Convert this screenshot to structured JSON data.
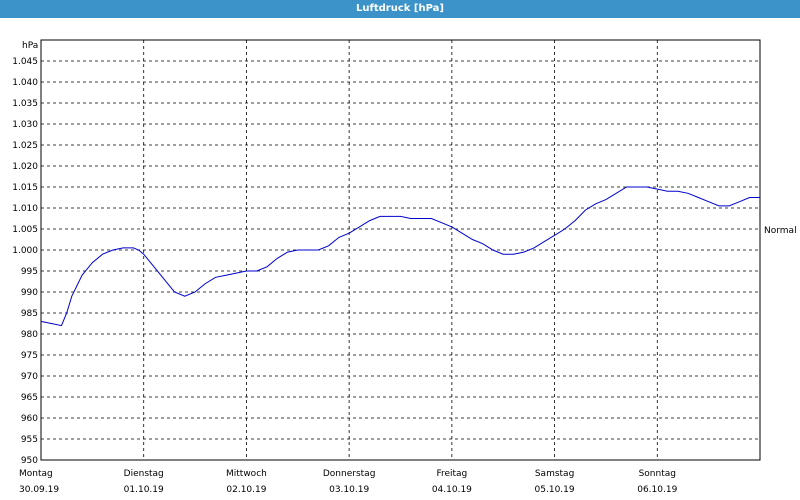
{
  "window": {
    "title": "Luftdruck [hPa]"
  },
  "chart_data": {
    "type": "line",
    "title": "Luftdruck [hPa]",
    "ylabel": "hPa",
    "ylim": [
      950,
      1050
    ],
    "yticks": [
      950,
      955,
      960,
      965,
      970,
      975,
      980,
      985,
      990,
      995,
      1000,
      1005,
      1010,
      1015,
      1020,
      1025,
      1030,
      1035,
      1040,
      1045
    ],
    "ytick_labels": [
      "950",
      "955",
      "960",
      "965",
      "970",
      "975",
      "980",
      "985",
      "990",
      "995",
      "1.000",
      "1.005",
      "1.010",
      "1.015",
      "1.020",
      "1.025",
      "1.030",
      "1.035",
      "1.040",
      "1.045"
    ],
    "xlim": [
      0,
      7
    ],
    "day_ticks": [
      {
        "day": "Montag",
        "date": "30.09.19",
        "x": 0
      },
      {
        "day": "Dienstag",
        "date": "01.10.19",
        "x": 1
      },
      {
        "day": "Mittwoch",
        "date": "02.10.19",
        "x": 2
      },
      {
        "day": "Donnerstag",
        "date": "03.10.19",
        "x": 3
      },
      {
        "day": "Freitag",
        "date": "04.10.19",
        "x": 4
      },
      {
        "day": "Samstag",
        "date": "05.10.19",
        "x": 5
      },
      {
        "day": "Sonntag",
        "date": "06.10.19",
        "x": 6
      }
    ],
    "reference_line": {
      "label": "Normal",
      "value": 1009.5
    },
    "grid": true,
    "line_color": "#0000cc",
    "series": [
      {
        "name": "",
        "x": [
          0,
          0.1,
          0.2,
          0.25,
          0.3,
          0.4,
          0.5,
          0.6,
          0.7,
          0.8,
          0.9,
          0.95,
          1.0,
          1.1,
          1.2,
          1.3,
          1.4,
          1.5,
          1.55,
          1.6,
          1.7,
          1.8,
          1.9,
          2.0,
          2.1,
          2.2,
          2.3,
          2.4,
          2.5,
          2.6,
          2.7,
          2.8,
          2.9,
          3.0,
          3.1,
          3.2,
          3.3,
          3.4,
          3.5,
          3.6,
          3.7,
          3.8,
          3.9,
          4.0,
          4.1,
          4.2,
          4.3,
          4.4,
          4.5,
          4.6,
          4.7,
          4.8,
          4.9,
          5.0,
          5.1,
          5.2,
          5.3,
          5.4,
          5.5,
          5.6,
          5.7,
          5.8,
          5.9,
          6.0,
          6.1,
          6.2,
          6.3,
          6.4,
          6.5,
          6.6,
          6.7,
          6.8,
          6.9,
          7.0
        ],
        "values": [
          983,
          982.5,
          982,
          985,
          989,
          994,
          997,
          999,
          1000,
          1000.5,
          1000.5,
          1000,
          999,
          996,
          993,
          990,
          989,
          990,
          991,
          992,
          993.5,
          994,
          994.5,
          995,
          995,
          996,
          998,
          999.5,
          1000,
          1000,
          1000,
          1001,
          1003,
          1004,
          1005.5,
          1007,
          1008,
          1008,
          1008,
          1007.5,
          1007.5,
          1007.5,
          1006.5,
          1005.5,
          1004,
          1002.5,
          1001.5,
          1000,
          999,
          999,
          999.5,
          1000.5,
          1002,
          1003.5,
          1005,
          1007,
          1009.5,
          1011,
          1012,
          1013.5,
          1015,
          1015,
          1015,
          1014.5,
          1014,
          1014,
          1013.5,
          1012.5,
          1011.5,
          1010.5,
          1010.5,
          1011.5,
          1012.5,
          1012.5
        ]
      }
    ]
  }
}
